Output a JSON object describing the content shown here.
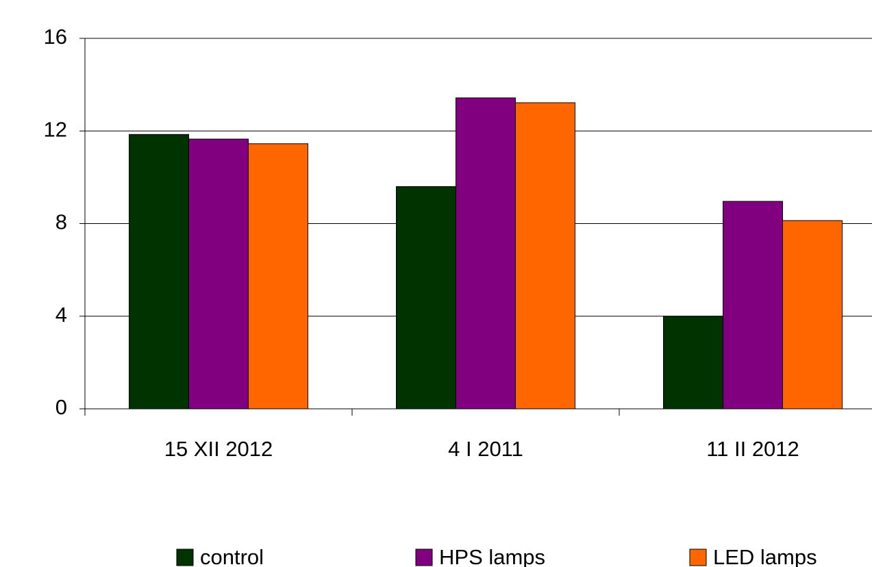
{
  "chart_data": {
    "type": "bar",
    "categories": [
      "15 XII 2012",
      "4 I 2011",
      "11 II 2012"
    ],
    "series": [
      {
        "name": "control",
        "color": "#003300",
        "values": [
          11.85,
          9.6,
          4.0
        ]
      },
      {
        "name": "HPS lamps",
        "color": "#800080",
        "values": [
          11.65,
          13.43,
          8.96
        ]
      },
      {
        "name": "LED lamps",
        "color": "#ff6600",
        "values": [
          11.45,
          13.22,
          8.13
        ]
      }
    ],
    "ylim": [
      0,
      16
    ],
    "yticks": [
      0,
      4,
      8,
      12,
      16
    ],
    "grid": true,
    "legend": "bottom"
  }
}
